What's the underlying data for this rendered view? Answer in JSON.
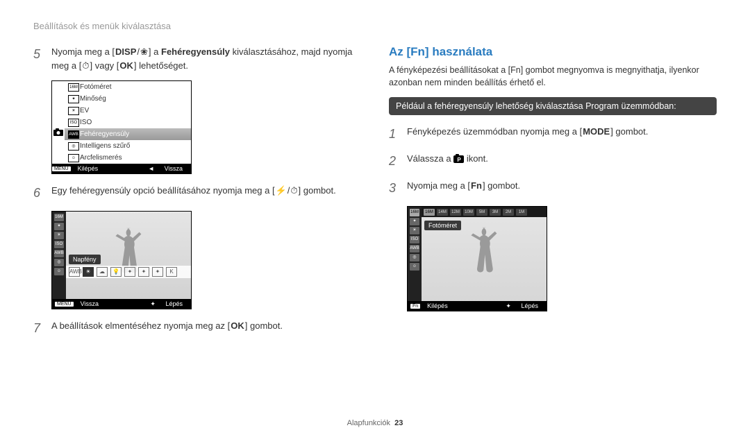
{
  "breadcrumb": "Beállítások és menük kiválasztása",
  "left": {
    "step5_pre": "Nyomja meg a [",
    "step5_mid1": "] a ",
    "step5_bold": "Fehéregyensúly",
    "step5_mid2": " kiválasztásához, majd nyomja meg a [",
    "step5_mid3": "] vagy [",
    "step5_end": "] lehetőséget.",
    "step6_pre": "Egy fehéregyensúly opció beállításához nyomja meg a [",
    "step6_end": "] gombot.",
    "step7_pre": "A beállítások elmentéséhez nyomja meg az [",
    "step7_end": "] gombot.",
    "menu": {
      "items": [
        "Fotóméret",
        "Minőség",
        "EV",
        "ISO",
        "Fehéregyensúly",
        "Intelligens szűrő",
        "Arcfelismerés"
      ],
      "icons": [
        "16M",
        "✦",
        "☀",
        "ISO",
        "AWB",
        "◎",
        "☺"
      ],
      "selected_index": 4,
      "footer_left_btn": "MENU",
      "footer_left": "Kilépés",
      "footer_right_icon": "◄",
      "footer_right": "Vissza"
    },
    "wb": {
      "label": "Napfény",
      "side_icons": [
        "16M",
        "✦",
        "☀",
        "ISO",
        "AWB",
        "◎",
        "☺"
      ],
      "strip": [
        "AWB",
        "☀",
        "☁",
        "💡",
        "✦",
        "✦",
        "✦",
        "K"
      ],
      "strip_sel": 1,
      "footer_left_btn": "MENU",
      "footer_left": "Vissza",
      "footer_right_icon": "✦",
      "footer_right": "Lépés"
    }
  },
  "right": {
    "heading": "Az [Fn] használata",
    "desc": "A fényképezési beállításokat a [Fn] gombot megnyomva is megnyithatja, ilyenkor azonban nem minden beállítás érhető el.",
    "banner": "Például a fehéregyensúly lehetőség kiválasztása Program üzemmódban:",
    "step1_pre": "Fényképezés üzemmódban nyomja meg a [",
    "step1_end": "] gombot.",
    "step2_pre": "Válassza a ",
    "step2_end": " ikont.",
    "step3_pre": "Nyomja meg a [",
    "step3_end": "] gombot.",
    "fn": {
      "top": [
        "16M",
        "14M",
        "12M",
        "10M",
        "5M",
        "3M",
        "2M",
        "1M"
      ],
      "top_sel": 0,
      "label": "Fotóméret",
      "side": [
        "16M",
        "✦",
        "☀",
        "ISO",
        "AWB",
        "◎",
        "☺"
      ],
      "side_sel": 0,
      "footer_left_btn": "Fn",
      "footer_left": "Kilépés",
      "footer_right_icon": "✦",
      "footer_right": "Lépés"
    }
  },
  "page_footer_label": "Alapfunkciók",
  "page_footer_num": "23",
  "btn_labels": {
    "disp": "DISP",
    "flower": "❀",
    "timer": "⏱",
    "ok": "OK",
    "flash": "⚡",
    "mode": "MODE",
    "fn": "Fn"
  },
  "colors": {
    "heading": "#2a7cc0",
    "banner_bg": "#444444"
  }
}
